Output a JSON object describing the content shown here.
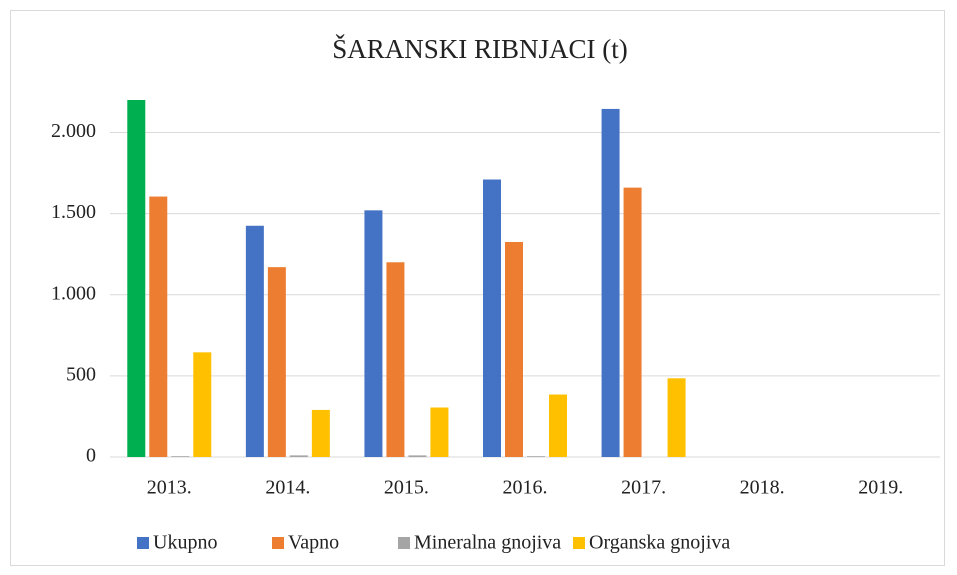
{
  "chart_data": {
    "type": "bar",
    "title": "ŠARANSKI RIBNJACI (t)",
    "categories": [
      "2013.",
      "2014.",
      "2015.",
      "2016.",
      "2017.",
      "2018.",
      "2019."
    ],
    "series": [
      {
        "name": "Ukupno",
        "color": "#4472c4",
        "colors": [
          "#00b050",
          "#4472c4",
          "#4472c4",
          "#4472c4",
          "#4472c4",
          "#4472c4",
          "#4472c4"
        ],
        "values": [
          2200,
          1425,
          1520,
          1710,
          2145,
          null,
          null
        ]
      },
      {
        "name": "Vapno",
        "color": "#ed7d31",
        "values": [
          1605,
          1170,
          1200,
          1325,
          1660,
          null,
          null
        ]
      },
      {
        "name": "Mineralna gnojiva",
        "color": "#a5a5a5",
        "values": [
          5,
          10,
          10,
          5,
          null,
          null,
          null
        ]
      },
      {
        "name": "Organska gnojiva",
        "color": "#ffc000",
        "values": [
          645,
          290,
          305,
          385,
          485,
          null,
          null
        ]
      }
    ],
    "ylim": [
      0,
      2200
    ],
    "yticks": [
      0,
      500,
      {
        "value": 1000,
        "label": "1.000"
      },
      {
        "value": 1500,
        "label": "1.500"
      },
      {
        "value": 2000,
        "label": "2.000"
      }
    ],
    "grid": true,
    "legend": "bottom"
  }
}
